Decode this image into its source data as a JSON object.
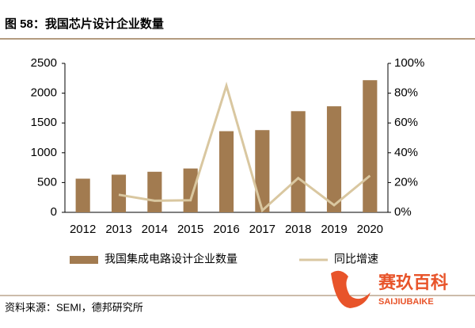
{
  "chart_data": {
    "type": "bar_line",
    "title": "图 58：我国芯片设计企业数量",
    "categories": [
      "2012",
      "2013",
      "2014",
      "2015",
      "2016",
      "2017",
      "2018",
      "2019",
      "2020"
    ],
    "series": [
      {
        "name": "我国集成电路设计企业数量",
        "type": "bar",
        "color": "#a27b50",
        "values": [
          565,
          632,
          681,
          736,
          1362,
          1380,
          1698,
          1780,
          2218
        ]
      },
      {
        "name": "同比增速",
        "type": "line",
        "axis": "y2",
        "color": "#d9c7a0",
        "values": [
          null,
          11.8,
          7.8,
          8.1,
          85,
          1.3,
          23,
          4.8,
          24.6
        ]
      }
    ],
    "ylim": [
      0,
      2500
    ],
    "yticks": [
      0,
      500,
      1000,
      1500,
      2000,
      2500
    ],
    "y2lim": [
      0,
      100
    ],
    "y2ticks": [
      {
        "value": 0,
        "label": "0%"
      },
      {
        "value": 20,
        "label": "20%"
      },
      {
        "value": 40,
        "label": "40%"
      },
      {
        "value": 60,
        "label": "60%"
      },
      {
        "value": 80,
        "label": "80%"
      },
      {
        "value": 100,
        "label": "100%"
      }
    ],
    "legend": "bottom",
    "source": "资料来源：SEMI，德邦研究所",
    "watermark": {
      "name": "赛玖百科",
      "sub": "SAIJIUBAIKE"
    }
  }
}
